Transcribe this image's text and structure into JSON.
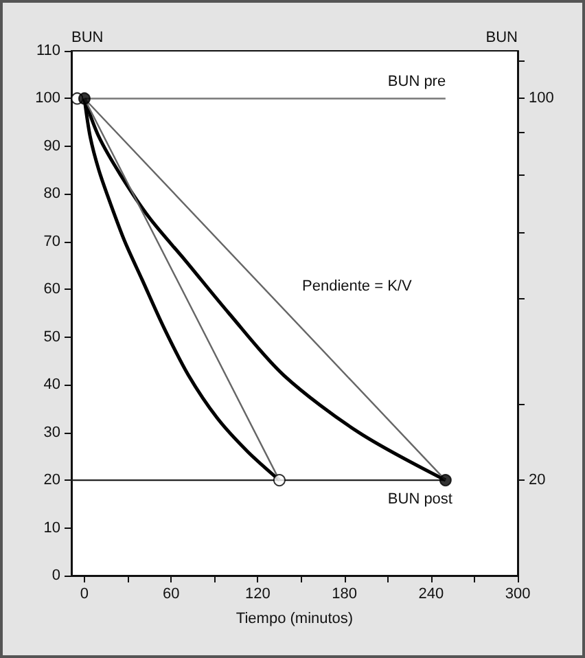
{
  "chart_data": {
    "type": "line",
    "xlabel": "Tiempo (minutos)",
    "ylabel": "BUN",
    "y2label": "BUN",
    "xlim": [
      -9,
      300
    ],
    "xticks": [
      0,
      {
        "value": 30,
        "label": null
      },
      60,
      {
        "value": 90,
        "label": null
      },
      120,
      {
        "value": 150,
        "label": null
      },
      180,
      {
        "value": 210,
        "label": null
      },
      240,
      {
        "value": 270,
        "label": null
      },
      300
    ],
    "ylim": [
      0,
      110
    ],
    "yticks": [
      0,
      10,
      20,
      30,
      40,
      50,
      60,
      70,
      80,
      90,
      100,
      110
    ],
    "y2lim": [
      0,
      110
    ],
    "y2ticks": [
      20,
      {
        "value": 36,
        "label": null
      },
      {
        "value": 58,
        "label": null
      },
      {
        "value": 72,
        "label": null
      },
      {
        "value": 84,
        "label": null
      },
      {
        "value": 93,
        "label": null
      },
      100,
      {
        "value": 108,
        "label": null
      }
    ],
    "grid": false,
    "legend": false,
    "marker": "none",
    "series": [
      {
        "name": "BUN pre",
        "color": "#777777",
        "x": [
          0,
          250
        ],
        "values": [
          100,
          100
        ]
      },
      {
        "name": "BUN post",
        "color": "#222222",
        "x": [
          -9,
          250
        ],
        "values": [
          20,
          20
        ]
      },
      {
        "color": "#000000",
        "x": [
          0,
          4,
          10,
          18,
          28,
          40,
          55,
          72,
          92,
          113,
          135
        ],
        "values": [
          100,
          92,
          85,
          78,
          70,
          62,
          52,
          42,
          33,
          26,
          20
        ]
      },
      {
        "color": "#000000",
        "x": [
          0,
          10,
          25,
          45,
          70,
          100,
          138,
          190,
          250
        ],
        "values": [
          100,
          92,
          84,
          75,
          66,
          55,
          42,
          30,
          20
        ]
      },
      {
        "color": "#666666",
        "x": [
          0,
          135
        ],
        "values": [
          100,
          20
        ]
      },
      {
        "color": "#666666",
        "x": [
          0,
          250
        ],
        "values": [
          100,
          20
        ]
      },
      {
        "type": "scatter",
        "marker": "circle",
        "color": "#ffffff",
        "x": [
          -5,
          135
        ],
        "values": [
          100,
          20
        ]
      },
      {
        "type": "scatter",
        "marker": "circle",
        "color": "#000000",
        "x": [
          0,
          250
        ],
        "values": [
          100,
          20
        ]
      }
    ],
    "annotations": [
      "Pendiente = K/V"
    ]
  }
}
